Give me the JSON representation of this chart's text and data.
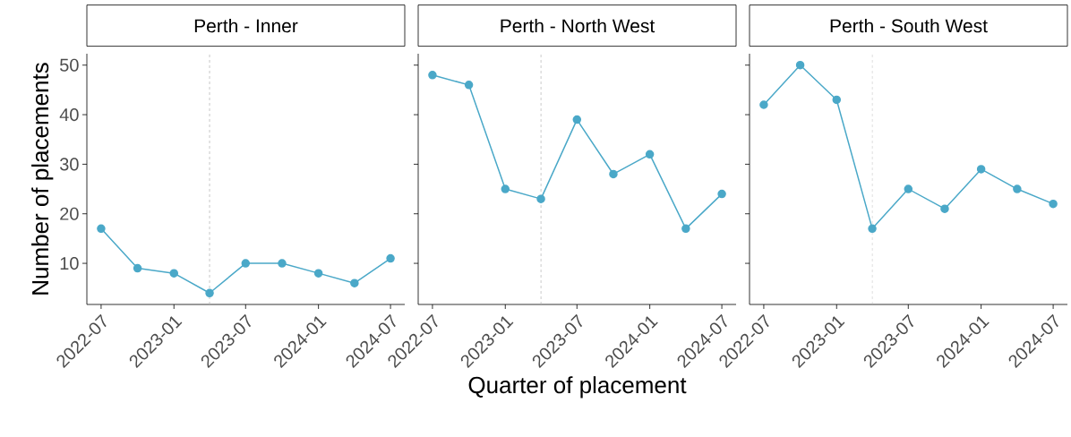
{
  "chart_data": [
    {
      "type": "line",
      "title": "Perth - Inner",
      "ylabel": "Number of placements",
      "x": [
        "2022-07",
        "2022-10",
        "2023-01",
        "2023-04",
        "2023-07",
        "2023-10",
        "2024-01",
        "2024-04",
        "2024-07"
      ],
      "series": [
        {
          "color": "#4aa8c8",
          "values": [
            17,
            9,
            8,
            4,
            10,
            10,
            8,
            6,
            11
          ]
        }
      ],
      "xlim": [
        "2022-05-26",
        "2024-08-06"
      ],
      "ylim": [
        1.7,
        52.3
      ],
      "xticks": [
        "2022-07",
        "2023-01",
        "2023-07",
        "2024-01",
        "2024-07"
      ],
      "yticks": [
        10,
        20,
        30,
        40,
        50
      ],
      "ref_lines": [
        {
          "axis": "x",
          "value": "2023-04",
          "color": "#b3b3b3",
          "line_style": "dashed"
        }
      ],
      "marker": "circle",
      "line_style": "solid"
    },
    {
      "type": "line",
      "title": "Perth - North West",
      "xlabel": "Quarter of placement",
      "x": [
        "2022-07",
        "2022-10",
        "2023-01",
        "2023-04",
        "2023-07",
        "2023-10",
        "2024-01",
        "2024-04",
        "2024-07"
      ],
      "series": [
        {
          "color": "#4aa8c8",
          "values": [
            48,
            46,
            25,
            23,
            39,
            28,
            32,
            17,
            24
          ]
        }
      ],
      "xlim": [
        "2022-05-26",
        "2024-08-06"
      ],
      "ylim": [
        1.7,
        52.3
      ],
      "xticks": [
        "2022-07",
        "2023-01",
        "2023-07",
        "2024-01",
        "2024-07"
      ],
      "yticks": [
        10,
        20,
        30,
        40,
        50
      ],
      "tick_labels": "x",
      "ref_lines": [
        {
          "axis": "x",
          "value": "2023-04",
          "color": "#b3b3b3",
          "line_style": "dashed"
        }
      ],
      "marker": "circle",
      "line_style": "solid"
    },
    {
      "type": "line",
      "title": "Perth - South West",
      "x": [
        "2022-07",
        "2022-10",
        "2023-01",
        "2023-04",
        "2023-07",
        "2023-10",
        "2024-01",
        "2024-04",
        "2024-07"
      ],
      "series": [
        {
          "color": "#4aa8c8",
          "values": [
            42,
            50,
            43,
            17,
            25,
            21,
            29,
            25,
            22
          ]
        }
      ],
      "xlim": [
        "2022-05-26",
        "2024-08-06"
      ],
      "ylim": [
        1.7,
        52.3
      ],
      "xticks": [
        "2022-07",
        "2023-01",
        "2023-07",
        "2024-01",
        "2024-07"
      ],
      "yticks": [
        10,
        20,
        30,
        40,
        50
      ],
      "tick_labels": "x",
      "ref_lines": [
        {
          "axis": "x",
          "value": "2023-04",
          "color": "#b3b3b3",
          "line_style": "dashed"
        }
      ],
      "marker": "circle",
      "line_style": "solid"
    }
  ]
}
